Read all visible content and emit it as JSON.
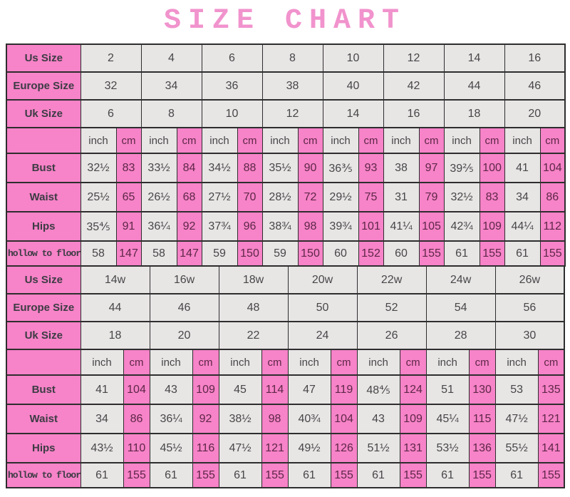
{
  "title": "SIZE CHART",
  "colors": {
    "pink": "#f783c8",
    "pink_light": "#f88fcd",
    "gray_cell": "#e8e5e5",
    "border": "#2e2e2e",
    "title_pink": "#f193cd",
    "label_text": "#3c3c44",
    "pink_cell_text": "#5d2747"
  },
  "unit_labels": {
    "inch": "inch",
    "cm": "cm"
  },
  "row_labels": {
    "us": "Us Size",
    "europe": "Europe Size",
    "uk": "Uk Size",
    "bust": "Bust",
    "waist": "Waist",
    "hips": "Hips",
    "hollow": "hollow to floor"
  },
  "size_tables": [
    {
      "name": "standard-sizes",
      "label_col_width": 104,
      "inch_col_width": 50,
      "cm_col_width": 35,
      "us_sizes": [
        "2",
        "4",
        "6",
        "8",
        "10",
        "12",
        "14",
        "16"
      ],
      "europe_sizes": [
        "32",
        "34",
        "36",
        "38",
        "40",
        "42",
        "44",
        "46"
      ],
      "uk_sizes": [
        "6",
        "8",
        "10",
        "12",
        "14",
        "16",
        "18",
        "20"
      ],
      "measurements": [
        {
          "key": "bust",
          "inch": [
            "32½",
            "33½",
            "34½",
            "35½",
            "36⅗",
            "38",
            "39⅖",
            "41"
          ],
          "cm": [
            "83",
            "84",
            "88",
            "90",
            "93",
            "97",
            "100",
            "104"
          ]
        },
        {
          "key": "waist",
          "inch": [
            "25½",
            "26½",
            "27½",
            "28½",
            "29½",
            "31",
            "32½",
            "34"
          ],
          "cm": [
            "65",
            "68",
            "70",
            "72",
            "75",
            "79",
            "83",
            "86"
          ]
        },
        {
          "key": "hips",
          "inch": [
            "35⅘",
            "36¼",
            "37¾",
            "38¾",
            "39¾",
            "41¼",
            "42¾",
            "44¼"
          ],
          "cm": [
            "91",
            "92",
            "96",
            "98",
            "101",
            "105",
            "109",
            "112"
          ]
        },
        {
          "key": "hollow",
          "inch": [
            "58",
            "58",
            "59",
            "59",
            "60",
            "60",
            "61",
            "61"
          ],
          "cm": [
            "147",
            "147",
            "150",
            "150",
            "152",
            "155",
            "155",
            "155"
          ]
        }
      ]
    },
    {
      "name": "plus-sizes",
      "label_col_width": 104,
      "inch_col_width": 60,
      "cm_col_width": 37,
      "us_sizes": [
        "14w",
        "16w",
        "18w",
        "20w",
        "22w",
        "24w",
        "26w"
      ],
      "europe_sizes": [
        "44",
        "46",
        "48",
        "50",
        "52",
        "54",
        "56"
      ],
      "uk_sizes": [
        "18",
        "20",
        "22",
        "24",
        "26",
        "28",
        "30"
      ],
      "measurements": [
        {
          "key": "bust",
          "inch": [
            "41",
            "43",
            "45",
            "47",
            "48⅘",
            "51",
            "53"
          ],
          "cm": [
            "104",
            "109",
            "114",
            "119",
            "124",
            "130",
            "135"
          ]
        },
        {
          "key": "waist",
          "inch": [
            "34",
            "36¼",
            "38½",
            "40¾",
            "43",
            "45¼",
            "47½"
          ],
          "cm": [
            "86",
            "92",
            "98",
            "104",
            "109",
            "115",
            "121"
          ]
        },
        {
          "key": "hips",
          "inch": [
            "43½",
            "45½",
            "47½",
            "49½",
            "51½",
            "53½",
            "55½"
          ],
          "cm": [
            "110",
            "116",
            "121",
            "126",
            "131",
            "136",
            "141"
          ]
        },
        {
          "key": "hollow",
          "inch": [
            "61",
            "61",
            "61",
            "61",
            "61",
            "61",
            "61"
          ],
          "cm": [
            "155",
            "155",
            "155",
            "155",
            "155",
            "155",
            "155"
          ]
        }
      ]
    }
  ]
}
